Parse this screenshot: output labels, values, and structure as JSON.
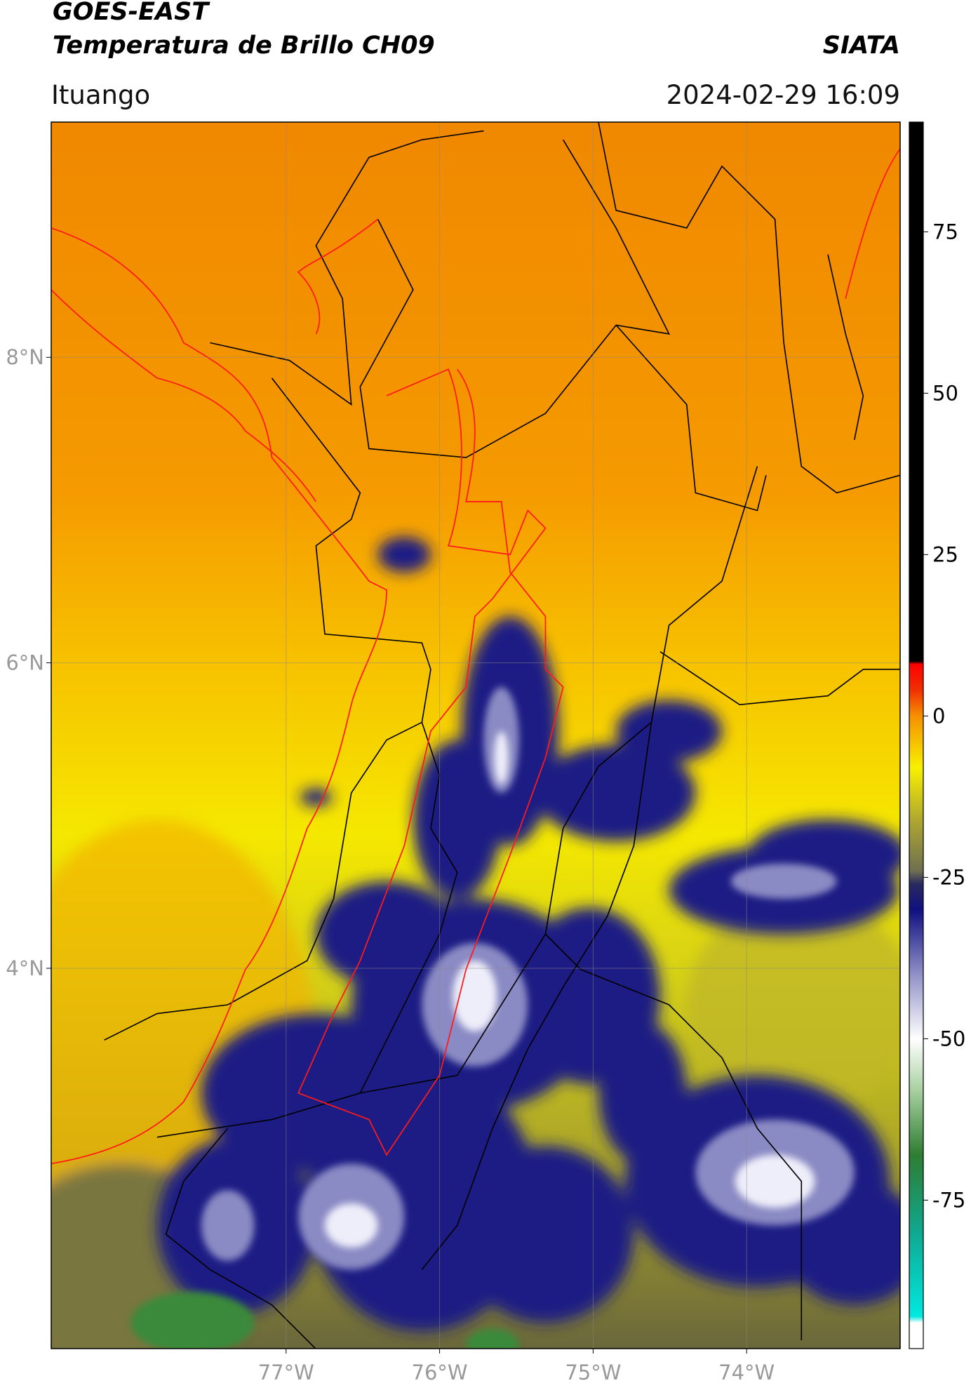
{
  "header": {
    "title": "GOES-EAST",
    "subtitle": "Temperatura de Brillo CH09",
    "credit": "SIATA",
    "location": "Ituango",
    "timestamp": "2024-02-29 16:09"
  },
  "chart_data": {
    "type": "map",
    "xlim": [
      -78.53,
      -73.0
    ],
    "ylim": [
      1.51,
      9.54
    ],
    "xticks": [
      {
        "value": -77,
        "label": "77°W"
      },
      {
        "value": -76,
        "label": "76°W"
      },
      {
        "value": -75,
        "label": "75°W"
      },
      {
        "value": -74,
        "label": "74°W"
      }
    ],
    "yticks": [
      {
        "value": 4,
        "label": "4°N"
      },
      {
        "value": 6,
        "label": "6°N"
      },
      {
        "value": 8,
        "label": "8°N"
      }
    ],
    "grid": true,
    "colorbar": {
      "lim": [
        -98,
        92
      ],
      "ticks": [
        -75,
        -50,
        -25,
        0,
        25,
        50,
        75
      ],
      "colormap": [
        {
          "value": -98,
          "color": "#ffffff"
        },
        {
          "value": -94,
          "color": "#ffffff"
        },
        {
          "value": -93,
          "color": "#00e8e0"
        },
        {
          "value": -80,
          "color": "#10a890"
        },
        {
          "value": -68,
          "color": "#2e7d32"
        },
        {
          "value": -58,
          "color": "#a8d0a0"
        },
        {
          "value": -50,
          "color": "#ffffff"
        },
        {
          "value": -40,
          "color": "#9090c8"
        },
        {
          "value": -30,
          "color": "#101080"
        },
        {
          "value": -26,
          "color": "#2a2a60"
        },
        {
          "value": -24,
          "color": "#707050"
        },
        {
          "value": -16,
          "color": "#b0a830"
        },
        {
          "value": -8,
          "color": "#f8f000"
        },
        {
          "value": 0,
          "color": "#f59000"
        },
        {
          "value": 4,
          "color": "#f03000"
        },
        {
          "value": 8,
          "color": "#ff0000"
        },
        {
          "value": 8.5,
          "color": "#000000"
        },
        {
          "value": 92,
          "color": "#000000"
        }
      ]
    }
  }
}
